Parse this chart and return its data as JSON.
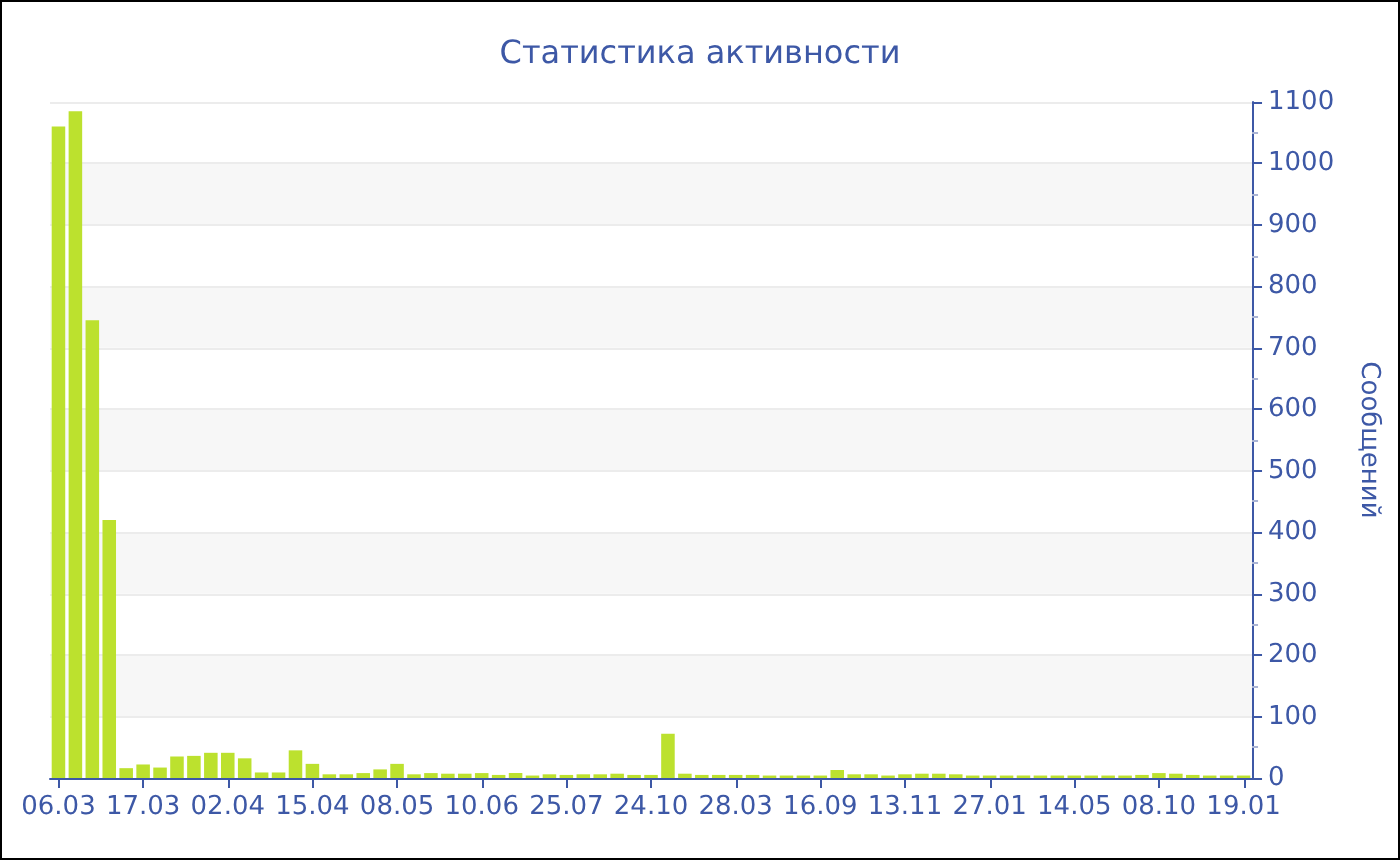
{
  "chart_data": {
    "type": "bar",
    "title": "Статистика активности",
    "ylabel": "Сообщений",
    "categories": [
      "06.03",
      null,
      null,
      null,
      null,
      "17.03",
      null,
      null,
      null,
      null,
      "02.04",
      null,
      null,
      null,
      null,
      "15.04",
      null,
      null,
      null,
      null,
      "08.05",
      null,
      null,
      null,
      null,
      "10.06",
      null,
      null,
      null,
      null,
      "25.07",
      null,
      null,
      null,
      null,
      "24.10",
      null,
      null,
      null,
      null,
      "28.03",
      null,
      null,
      null,
      null,
      "16.09",
      null,
      null,
      null,
      null,
      "13.11",
      null,
      null,
      null,
      null,
      "27.01",
      null,
      null,
      null,
      null,
      "14.05",
      null,
      null,
      null,
      null,
      "08.10",
      null,
      null,
      null,
      null,
      "19.01"
    ],
    "values": [
      1060,
      1085,
      745,
      420,
      16,
      22,
      17,
      35,
      36,
      41,
      41,
      32,
      9,
      9,
      45,
      23,
      6,
      6,
      8,
      14,
      23,
      6,
      8,
      7,
      7,
      8,
      5,
      8,
      4,
      6,
      5,
      6,
      6,
      7,
      5,
      5,
      72,
      7,
      5,
      5,
      5,
      5,
      4,
      4,
      4,
      4,
      13,
      6,
      6,
      4,
      6,
      7,
      7,
      6,
      4,
      4,
      4,
      4,
      4,
      4,
      4,
      4,
      4,
      4,
      5,
      8,
      7,
      5,
      4,
      4,
      4
    ],
    "color": "#bce12e",
    "ylim": [
      0,
      1100
    ],
    "yticks": [
      0,
      100,
      200,
      300,
      400,
      500,
      600,
      700,
      800,
      900,
      1000,
      1100
    ],
    "grid": "y"
  }
}
